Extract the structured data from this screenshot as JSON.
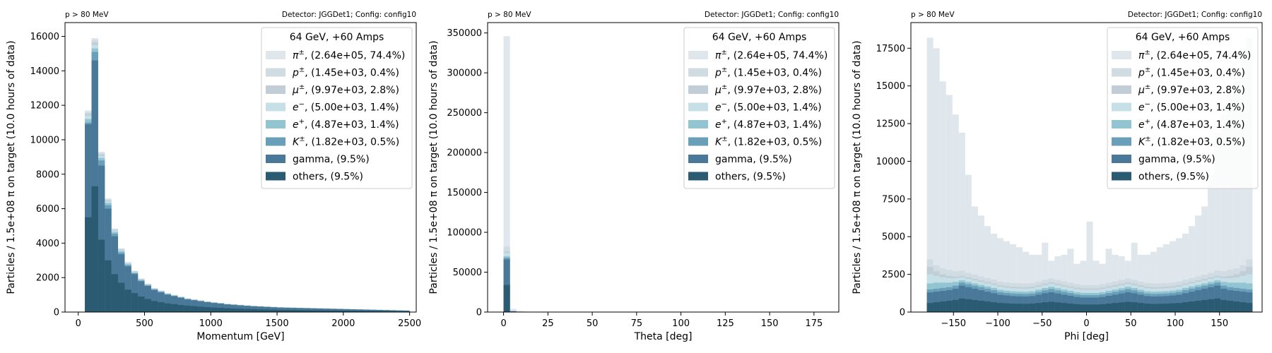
{
  "colors": [
    "#dfe6ec",
    "#d0dbe2",
    "#c1ced7",
    "#c7e0e7",
    "#93c4d1",
    "#6a9fba",
    "#4a7898",
    "#2b5b72"
  ],
  "legend": {
    "title": "64 GeV, +60 Amps",
    "entries": [
      {
        "particle": "π±",
        "label": ", (2.64e+05, 74.4%)"
      },
      {
        "particle": "p±",
        "label": ", (1.45e+03, 0.4%)"
      },
      {
        "particle": "μ±",
        "label": ", (9.97e+03, 2.8%)"
      },
      {
        "particle": "e−",
        "label": ", (5.00e+03, 1.4%)"
      },
      {
        "particle": "e+",
        "label": ", (4.87e+03, 1.4%)"
      },
      {
        "particle": "K±",
        "label": ", (1.82e+03, 0.5%)"
      },
      {
        "particle": "",
        "label": "gamma, (9.5%)"
      },
      {
        "particle": "",
        "label": "others, (9.5%)"
      }
    ]
  },
  "chart_data": [
    {
      "type": "bar",
      "stacked": true,
      "note_left": "p > 80 MeV",
      "note_right": "Detector: JGGDet1; Config: config10",
      "xlabel": "Momentum [GeV]",
      "ylabel": "Particles / 1.5e+08 π on target (10.0 hours of data)",
      "xlim": [
        -100,
        2550
      ],
      "ylim": [
        0,
        16800
      ],
      "xticks": [
        0,
        500,
        1000,
        1500,
        2000,
        2500
      ],
      "yticks": [
        0,
        2000,
        4000,
        6000,
        8000,
        10000,
        12000,
        14000,
        16000
      ],
      "bins": {
        "start": 50,
        "width": 50
      },
      "totals": [
        11700,
        15900,
        9300,
        6600,
        4850,
        3700,
        2900,
        2400,
        1950,
        1650,
        1400,
        1250,
        1100,
        1000,
        900,
        800,
        740,
        680,
        620,
        570,
        530,
        480,
        450,
        420,
        390,
        360,
        340,
        320,
        300,
        280,
        270,
        260,
        250,
        240,
        230,
        220,
        210,
        200,
        190,
        180,
        170,
        160,
        150,
        140,
        130,
        120,
        110,
        100,
        90
      ],
      "layers": [
        [
          5500,
          7300,
          4200,
          3000,
          2200,
          1700,
          1300,
          1100,
          900,
          760,
          640,
          570,
          500,
          460,
          410,
          370,
          340,
          310,
          285,
          260,
          245,
          220,
          205,
          195,
          180,
          165,
          155,
          148,
          138,
          129,
          124,
          120,
          115,
          110,
          105,
          101,
          96,
          92,
          87,
          83,
          78,
          74,
          69,
          64,
          60,
          55,
          51,
          46,
          41
        ],
        [
          10900,
          14600,
          8500,
          6000,
          4400,
          3350,
          2650,
          2200,
          1780,
          1510,
          1280,
          1140,
          1010,
          920,
          825,
          735,
          680,
          625,
          570,
          525,
          490,
          440,
          415,
          385,
          360,
          330,
          315,
          295,
          276,
          258,
          248,
          240,
          230,
          221,
          211,
          202,
          193,
          184,
          175,
          166,
          156,
          147,
          138,
          129,
          120,
          110,
          101,
          92,
          83
        ],
        [
          11000,
          15100,
          8800,
          6200,
          4550,
          3450,
          2720,
          2250,
          1830,
          1550,
          1310,
          1170,
          1030,
          940,
          845,
          750,
          695,
          640,
          582,
          535,
          498,
          450,
          423,
          394,
          366,
          338,
          319,
          300,
          282,
          263,
          254,
          244,
          235,
          226,
          216,
          207,
          197,
          188,
          179,
          169,
          160,
          150,
          141,
          131,
          122,
          113,
          103,
          94,
          85
        ],
        [
          11200,
          15300,
          8950,
          6330,
          4650,
          3540,
          2780,
          2300,
          1870,
          1580,
          1340,
          1200,
          1055,
          960,
          862,
          766,
          709,
          652,
          594,
          546,
          508,
          460,
          431,
          402,
          374,
          345,
          326,
          307,
          288,
          268,
          259,
          249,
          240,
          230,
          221,
          211,
          201,
          192,
          182,
          173,
          163,
          153,
          144,
          134,
          125,
          115,
          105,
          96,
          86
        ],
        [
          11400,
          15500,
          9050,
          6420,
          4720,
          3600,
          2820,
          2335,
          1900,
          1605,
          1362,
          1218,
          1072,
          975,
          877,
          779,
          721,
          663,
          604,
          555,
          516,
          468,
          438,
          409,
          380,
          351,
          331,
          312,
          292,
          273,
          263,
          253,
          244,
          234,
          224,
          214,
          205,
          195,
          185,
          175,
          166,
          156,
          146,
          136,
          127,
          117,
          107,
          97,
          88
        ],
        [
          11500,
          15650,
          9150,
          6480,
          4770,
          3640,
          2850,
          2360,
          1920,
          1623,
          1377,
          1230,
          1082,
          984,
          885,
          787,
          728,
          669,
          610,
          561,
          521,
          472,
          443,
          413,
          384,
          354,
          334,
          315,
          295,
          275,
          266,
          256,
          246,
          236,
          226,
          216,
          207,
          197,
          187,
          177,
          167,
          157,
          148,
          138,
          128,
          118,
          108,
          98,
          89
        ],
        [
          11600,
          15800,
          9230,
          6540,
          4810,
          3670,
          2875,
          2380,
          1935,
          1636,
          1388,
          1240,
          1091,
          992,
          893,
          793,
          734,
          674,
          615,
          565,
          526,
          476,
          446,
          416,
          387,
          357,
          337,
          317,
          297,
          278,
          268,
          258,
          248,
          238,
          228,
          218,
          208,
          198,
          188,
          178,
          169,
          159,
          149,
          139,
          129,
          119,
          109,
          99,
          89
        ],
        [
          11700,
          15900,
          9300,
          6600,
          4850,
          3700,
          2900,
          2400,
          1950,
          1650,
          1400,
          1250,
          1100,
          1000,
          900,
          800,
          740,
          680,
          620,
          570,
          530,
          480,
          450,
          420,
          390,
          360,
          340,
          320,
          300,
          280,
          270,
          260,
          250,
          240,
          230,
          220,
          210,
          200,
          190,
          180,
          170,
          160,
          150,
          140,
          130,
          120,
          110,
          100,
          90
        ]
      ]
    },
    {
      "type": "bar",
      "stacked": true,
      "note_left": "p > 80 MeV",
      "note_right": "Detector: JGGDet1; Config: config10",
      "xlabel": "Theta [deg]",
      "ylabel": "Particles / 1.5e+08 π on target (10.0 hours of data)",
      "xlim": [
        -9,
        189
      ],
      "ylim": [
        0,
        363000
      ],
      "xticks": [
        0,
        25,
        50,
        75,
        100,
        125,
        150,
        175
      ],
      "yticks": [
        0,
        50000,
        100000,
        150000,
        200000,
        250000,
        300000,
        350000
      ],
      "bins": {
        "start": 0,
        "width": 3.6
      },
      "totals": [
        346000,
        4000,
        1500,
        700,
        400,
        250,
        150,
        100,
        80,
        60,
        50,
        40,
        30,
        20,
        15,
        10
      ],
      "layers": [
        [
          34000,
          500,
          200,
          100,
          50,
          30,
          20,
          15,
          10,
          8,
          6,
          5,
          4,
          3,
          2,
          1
        ],
        [
          66000,
          900,
          350,
          160,
          90,
          55,
          35,
          22,
          18,
          14,
          11,
          9,
          7,
          5,
          3,
          2
        ],
        [
          68000,
          1000,
          380,
          175,
          100,
          62,
          38,
          25,
          20,
          15,
          12,
          10,
          8,
          5,
          4,
          3
        ],
        [
          70000,
          1100,
          420,
          190,
          110,
          68,
          42,
          28,
          22,
          17,
          14,
          11,
          8,
          6,
          4,
          3
        ],
        [
          74000,
          1300,
          480,
          220,
          125,
          78,
          47,
          31,
          25,
          19,
          16,
          12,
          9,
          6,
          5,
          3
        ],
        [
          76000,
          1400,
          520,
          240,
          135,
          85,
          50,
          34,
          27,
          20,
          17,
          13,
          10,
          7,
          5,
          3
        ],
        [
          82000,
          1600,
          600,
          280,
          160,
          100,
          60,
          40,
          32,
          24,
          20,
          16,
          12,
          8,
          6,
          4
        ],
        [
          346000,
          4000,
          1500,
          700,
          400,
          250,
          150,
          100,
          80,
          60,
          50,
          40,
          30,
          20,
          15,
          10
        ]
      ]
    },
    {
      "type": "bar",
      "stacked": true,
      "note_left": "p > 80 MeV",
      "note_right": "Detector: JGGDet1; Config: config10",
      "xlabel": "Phi [deg]",
      "ylabel": "Particles / 1.5e+08 π on target (10.0 hours of data)",
      "xlim": [
        -198,
        198
      ],
      "ylim": [
        0,
        19200
      ],
      "xticks": [
        -150,
        -100,
        -50,
        0,
        50,
        100,
        150
      ],
      "yticks": [
        0,
        2500,
        5000,
        7500,
        10000,
        12500,
        15000,
        17500
      ],
      "bins": {
        "start": -180,
        "width": 7.2
      },
      "totals": [
        18200,
        17500,
        15300,
        14400,
        13100,
        11900,
        9100,
        7000,
        6400,
        5700,
        5200,
        4900,
        4700,
        4500,
        4300,
        4000,
        3800,
        3800,
        4600,
        3400,
        3700,
        3800,
        4200,
        3200,
        3400,
        6000,
        3400,
        3200,
        4200,
        3800,
        3700,
        3400,
        4600,
        3800,
        3800,
        4000,
        4300,
        4500,
        4700,
        4900,
        5200,
        5700,
        6400,
        7000,
        9100,
        11900,
        13100,
        14400,
        15300,
        17500,
        18200
      ],
      "layers": [
        [
          600,
          650,
          700,
          750,
          800,
          900,
          850,
          800,
          750,
          700,
          650,
          600,
          580,
          560,
          550,
          540,
          560,
          600,
          650,
          680,
          640,
          600,
          560,
          520,
          500,
          500,
          500,
          520,
          560,
          600,
          640,
          680,
          650,
          600,
          560,
          540,
          550,
          560,
          580,
          600,
          650,
          700,
          750,
          800,
          850,
          900,
          800,
          750,
          700,
          650,
          600
        ],
        [
          1300,
          1350,
          1400,
          1450,
          1550,
          1750,
          1650,
          1550,
          1450,
          1350,
          1250,
          1150,
          1100,
          1060,
          1040,
          1030,
          1060,
          1150,
          1250,
          1310,
          1230,
          1150,
          1080,
          1000,
          960,
          960,
          960,
          1000,
          1080,
          1150,
          1230,
          1310,
          1250,
          1150,
          1060,
          1030,
          1040,
          1060,
          1100,
          1150,
          1250,
          1350,
          1450,
          1550,
          1650,
          1750,
          1550,
          1450,
          1400,
          1350,
          1300
        ],
        [
          1500,
          1550,
          1600,
          1650,
          1750,
          1950,
          1850,
          1750,
          1650,
          1550,
          1450,
          1330,
          1270,
          1230,
          1210,
          1200,
          1230,
          1330,
          1440,
          1520,
          1430,
          1340,
          1260,
          1170,
          1120,
          1120,
          1120,
          1170,
          1260,
          1340,
          1430,
          1520,
          1440,
          1330,
          1230,
          1200,
          1210,
          1230,
          1270,
          1330,
          1450,
          1550,
          1650,
          1750,
          1850,
          1950,
          1750,
          1650,
          1600,
          1550,
          1500
        ],
        [
          1900,
          1950,
          1950,
          1950,
          2000,
          2100,
          2000,
          1900,
          1800,
          1700,
          1600,
          1480,
          1420,
          1380,
          1360,
          1350,
          1380,
          1480,
          1590,
          1670,
          1580,
          1490,
          1410,
          1320,
          1270,
          1270,
          1270,
          1320,
          1410,
          1490,
          1580,
          1670,
          1590,
          1480,
          1380,
          1350,
          1360,
          1380,
          1420,
          1480,
          1600,
          1700,
          1800,
          1900,
          2000,
          2100,
          2000,
          1950,
          1950,
          1950,
          1900
        ],
        [
          2500,
          2400,
          2300,
          2250,
          2250,
          2300,
          2200,
          2100,
          2000,
          1900,
          1800,
          1680,
          1620,
          1580,
          1560,
          1550,
          1580,
          1680,
          1790,
          1870,
          1780,
          1690,
          1610,
          1520,
          1470,
          1470,
          1470,
          1520,
          1610,
          1690,
          1780,
          1870,
          1790,
          1680,
          1580,
          1550,
          1560,
          1580,
          1620,
          1680,
          1800,
          1900,
          2000,
          2100,
          2200,
          2300,
          2250,
          2250,
          2300,
          2400,
          2500
        ],
        [
          3000,
          2700,
          2500,
          2400,
          2350,
          2400,
          2300,
          2200,
          2100,
          2000,
          1900,
          1780,
          1720,
          1680,
          1660,
          1650,
          1680,
          1780,
          1890,
          1970,
          1880,
          1790,
          1710,
          1620,
          1570,
          1570,
          1570,
          1620,
          1710,
          1790,
          1880,
          1970,
          1890,
          1780,
          1680,
          1650,
          1660,
          1680,
          1720,
          1780,
          1900,
          2000,
          2100,
          2200,
          2300,
          2400,
          2350,
          2400,
          2500,
          2700,
          3000
        ],
        [
          3500,
          3100,
          2900,
          2800,
          2700,
          2750,
          2600,
          2480,
          2360,
          2250,
          2150,
          2020,
          1960,
          1920,
          1900,
          1890,
          1920,
          2020,
          2140,
          2230,
          2130,
          2030,
          1950,
          1850,
          1790,
          1790,
          1790,
          1850,
          1950,
          2030,
          2130,
          2230,
          2140,
          2020,
          1920,
          1890,
          1900,
          1920,
          1960,
          2020,
          2150,
          2250,
          2360,
          2480,
          2600,
          2750,
          2700,
          2800,
          2900,
          3100,
          3500
        ],
        [
          18200,
          17500,
          15300,
          14400,
          13100,
          11900,
          9100,
          7000,
          6400,
          5700,
          5200,
          4900,
          4700,
          4500,
          4300,
          4000,
          3800,
          3800,
          4600,
          3400,
          3700,
          3800,
          4200,
          3200,
          3400,
          6000,
          3400,
          3200,
          4200,
          3800,
          3700,
          3400,
          4600,
          3800,
          3800,
          4000,
          4300,
          4500,
          4700,
          4900,
          5200,
          5700,
          6400,
          7000,
          9100,
          11900,
          13100,
          14400,
          15300,
          17500,
          18200
        ]
      ]
    }
  ]
}
